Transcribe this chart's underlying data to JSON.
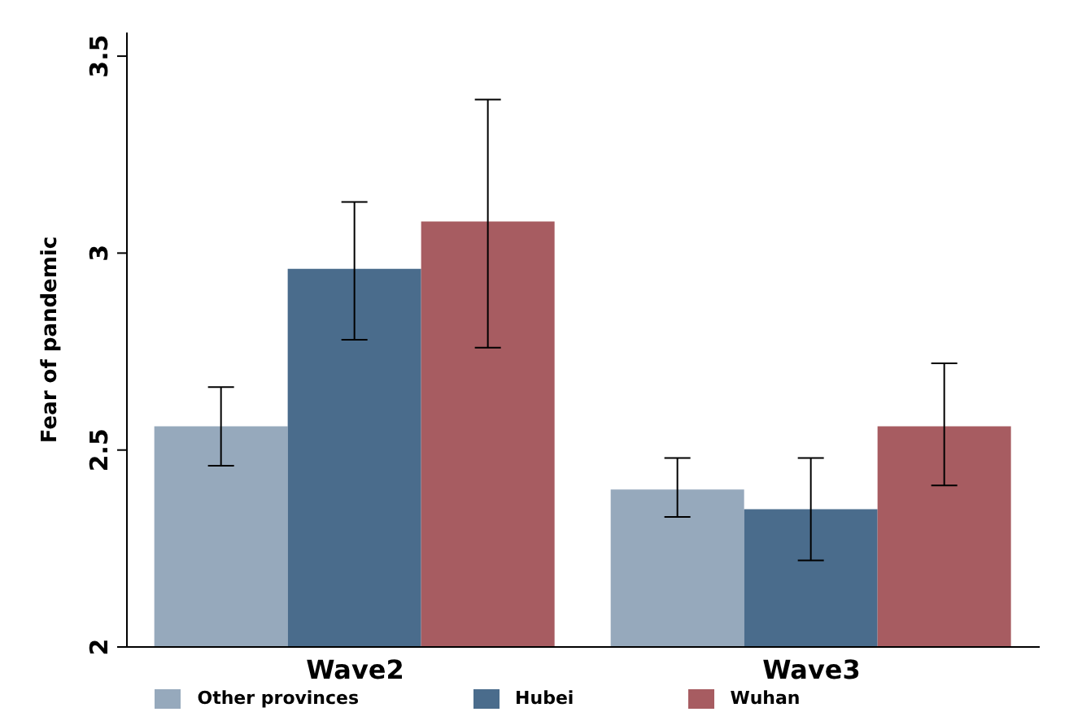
{
  "chart_data": {
    "type": "bar",
    "ylabel": "Fear of pandemic",
    "categories": [
      "Wave2",
      "Wave3"
    ],
    "series": [
      {
        "name": "Other provinces",
        "color": "#96a9bc",
        "values": [
          2.56,
          2.4
        ],
        "errors": [
          [
            2.46,
            2.66
          ],
          [
            2.33,
            2.48
          ]
        ]
      },
      {
        "name": "Hubei",
        "color": "#4a6c8c",
        "values": [
          2.96,
          2.35
        ],
        "errors": [
          [
            2.78,
            3.13
          ],
          [
            2.22,
            2.48
          ]
        ]
      },
      {
        "name": "Wuhan",
        "color": "#a75c61",
        "values": [
          3.08,
          2.56
        ],
        "errors": [
          [
            2.76,
            3.39
          ],
          [
            2.41,
            2.72
          ]
        ]
      }
    ],
    "ylim": [
      2,
      3.56
    ],
    "yticks": [
      2,
      2.5,
      3,
      3.5
    ],
    "grid": false,
    "legend": "bottom"
  }
}
